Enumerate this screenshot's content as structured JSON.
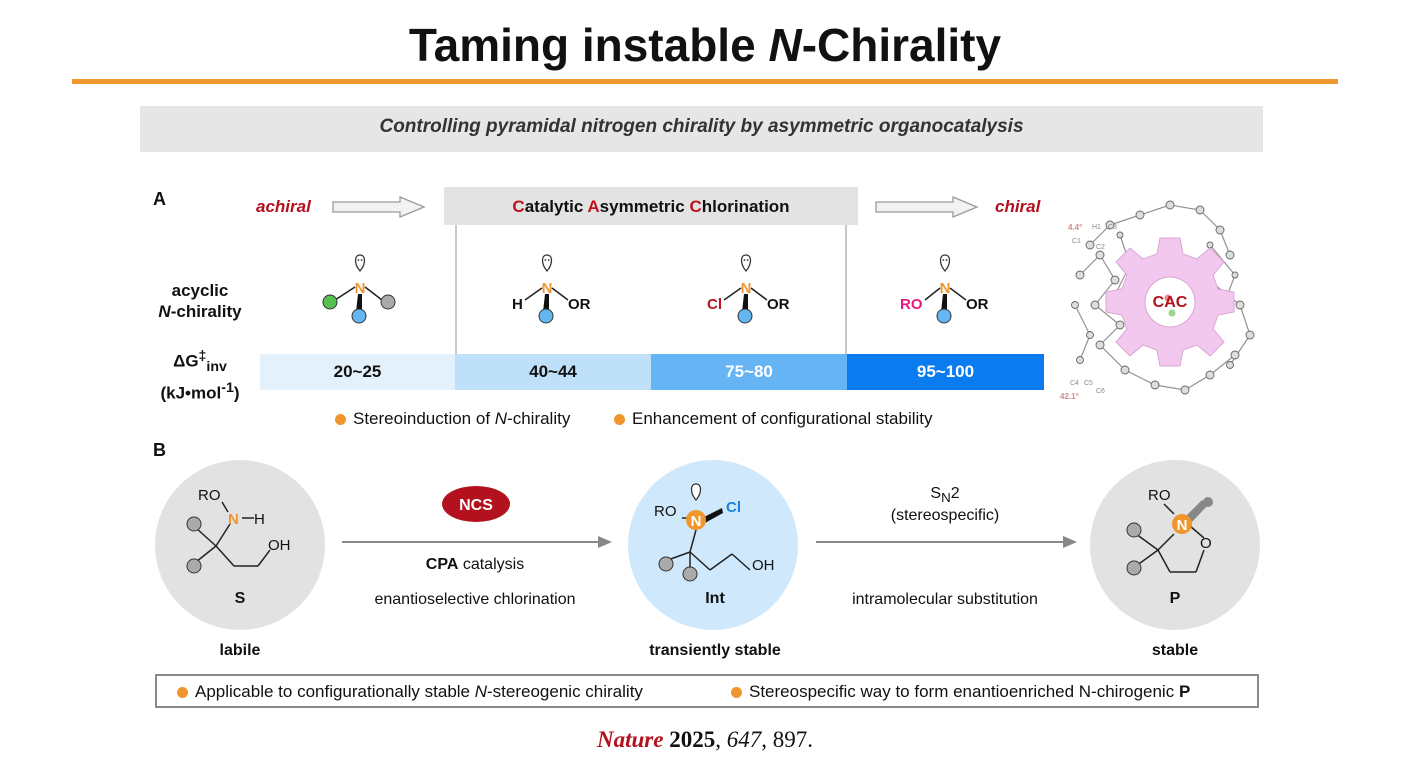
{
  "title_main": "Taming instable ",
  "title_italic": "N",
  "title_rest": "-Chirality",
  "subtitle": "Controlling pyramidal nitrogen chirality by asymmetric organocatalysis",
  "panel_a": {
    "label": "A",
    "achiral": "achiral",
    "chiral": "chiral",
    "cac_words": [
      {
        "initial": "C",
        "rest": "atalytic "
      },
      {
        "initial": "A",
        "rest": "symmetric "
      },
      {
        "initial": "C",
        "rest": "hlorination"
      }
    ],
    "row_label_1": "acyclic",
    "row_label_2_italic": "N",
    "row_label_2_rest": "-chirality",
    "dg_label_1": "ΔG",
    "dg_sup": "‡",
    "dg_sub": "inv",
    "dg_label_2": "(kJ•mol",
    "dg_label_2_sup": "-1",
    "dg_label_2_end": ")",
    "bars": [
      {
        "value": "20~25",
        "color": "#e3f1fc",
        "text_color": "#111111"
      },
      {
        "value": "40~44",
        "color": "#bfe0f9",
        "text_color": "#111111"
      },
      {
        "value": "75~80",
        "color": "#66b4f4",
        "text_color": "#ffffff"
      },
      {
        "value": "95~100",
        "color": "#0a7cef",
        "text_color": "#ffffff"
      }
    ],
    "molecules": {
      "m2_left": "H",
      "m2_right": "OR",
      "m3_left": "Cl",
      "m3_right": "OR",
      "m4_left": "RO",
      "m4_right": "OR",
      "n_atom": "N"
    },
    "bullet_1_pre": "Stereoinduction of ",
    "bullet_1_it": "N",
    "bullet_1_post": "-chirality",
    "bullet_2": "Enhancement of configurational stability",
    "crystal": {
      "center_label": "CAC",
      "angle_top": "4.4°",
      "angle_bottom": "42.1°",
      "atoms": [
        "H1",
        "C1",
        "C2",
        "C3",
        "C4",
        "C5",
        "C6"
      ]
    }
  },
  "panel_b": {
    "label": "B",
    "s_label": "S",
    "s_caption": "labile",
    "s_ro": "RO",
    "s_n": "N",
    "s_h": "H",
    "s_oh": "OH",
    "reagent": "NCS",
    "cat_bold": "CPA",
    "cat_rest": " catalysis",
    "step1": "enantioselective chlorination",
    "int_label": "Int",
    "int_caption": "transiently stable",
    "int_ro": "RO",
    "int_n": "N",
    "int_cl": "Cl",
    "int_oh": "OH",
    "sn2_s": "S",
    "sn2_sub": "N",
    "sn2_2": "2",
    "sn2_note": "(stereospecific)",
    "step2": "intramolecular substitution",
    "p_label": "P",
    "p_caption": "stable",
    "p_ro": "RO",
    "p_n": "N",
    "p_o": "O"
  },
  "footer": {
    "bullet_1_pre": "Applicable to configurationally stable ",
    "bullet_1_it": "N",
    "bullet_1_post": "-stereogenic chirality",
    "bullet_2_pre": "Stereospecific way to form enantioenriched N-chirogenic ",
    "bullet_2_bold": "P"
  },
  "citation": {
    "journal": "Nature",
    "year": "2025",
    "volume": "647",
    "page": ", 897."
  },
  "colors": {
    "accent_orange": "#f0962e",
    "title_rule": "#f0962e",
    "accent_red": "#b3111e",
    "cl_blue": "#1a82e0",
    "ro_pink": "#e8177d",
    "s_circle": "#e2e2e2",
    "int_circle": "#cfe8fb",
    "cac_gear": "#f2c8ee"
  }
}
